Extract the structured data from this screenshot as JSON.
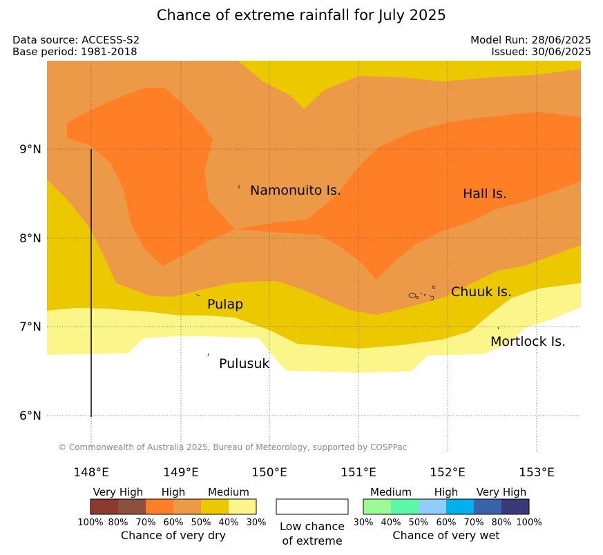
{
  "title": "Chance of extreme rainfall for July 2025",
  "info": {
    "data_source": "Data source: ACCESS-S2",
    "base_period": "Base period: 1981-2018",
    "model_run": "Model Run: 28/06/2025",
    "issued": "Issued: 30/06/2025"
  },
  "map": {
    "lon_labels": [
      "148°E",
      "149°E",
      "150°E",
      "151°E",
      "152°E",
      "153°E"
    ],
    "lat_labels": [
      "9°N",
      "8°N",
      "7°N",
      "6°N"
    ],
    "places": {
      "namonuito": "Namonuito Is.",
      "hall": "Hall Is.",
      "pulap": "Pulap",
      "chuuk": "Chuuk Is.",
      "mortlock": "Mortlock Is.",
      "pulusuk": "Pulusuk"
    },
    "credit": "© Commonwealth of Australia 2025, Bureau of Meteorology, supported by COSPPac",
    "colors": {
      "very_dry_very_high": "#8b3a2e",
      "very_dry_high_dark": "#8b5040",
      "dry_high": "#ff7f27",
      "dry_high_light": "#ec9a48",
      "dry_medium": "#ecc800",
      "dry_medium_light": "#fbf58a",
      "low": "#ffffff",
      "wet_medium_1": "#9dfb97",
      "wet_medium_2": "#5cf8a8",
      "wet_high_1": "#8fcdfa",
      "wet_high_2": "#00b0ec",
      "wet_very_high_1": "#3a64a8",
      "wet_very_high_2": "#3a3a78"
    }
  },
  "legend": {
    "dry": {
      "very_high": "Very High",
      "high": "High",
      "medium": "Medium",
      "pcts": [
        "100%",
        "80%",
        "70%",
        "60%",
        "50%",
        "40%",
        "30%"
      ],
      "caption": "Chance of very dry"
    },
    "low": {
      "line1": "Low chance",
      "line2": "of extreme"
    },
    "wet": {
      "medium": "Medium",
      "high": "High",
      "very_high": "Very High",
      "pcts": [
        "30%",
        "40%",
        "50%",
        "60%",
        "70%",
        "80%",
        "100%"
      ],
      "caption": "Chance of very wet"
    }
  }
}
